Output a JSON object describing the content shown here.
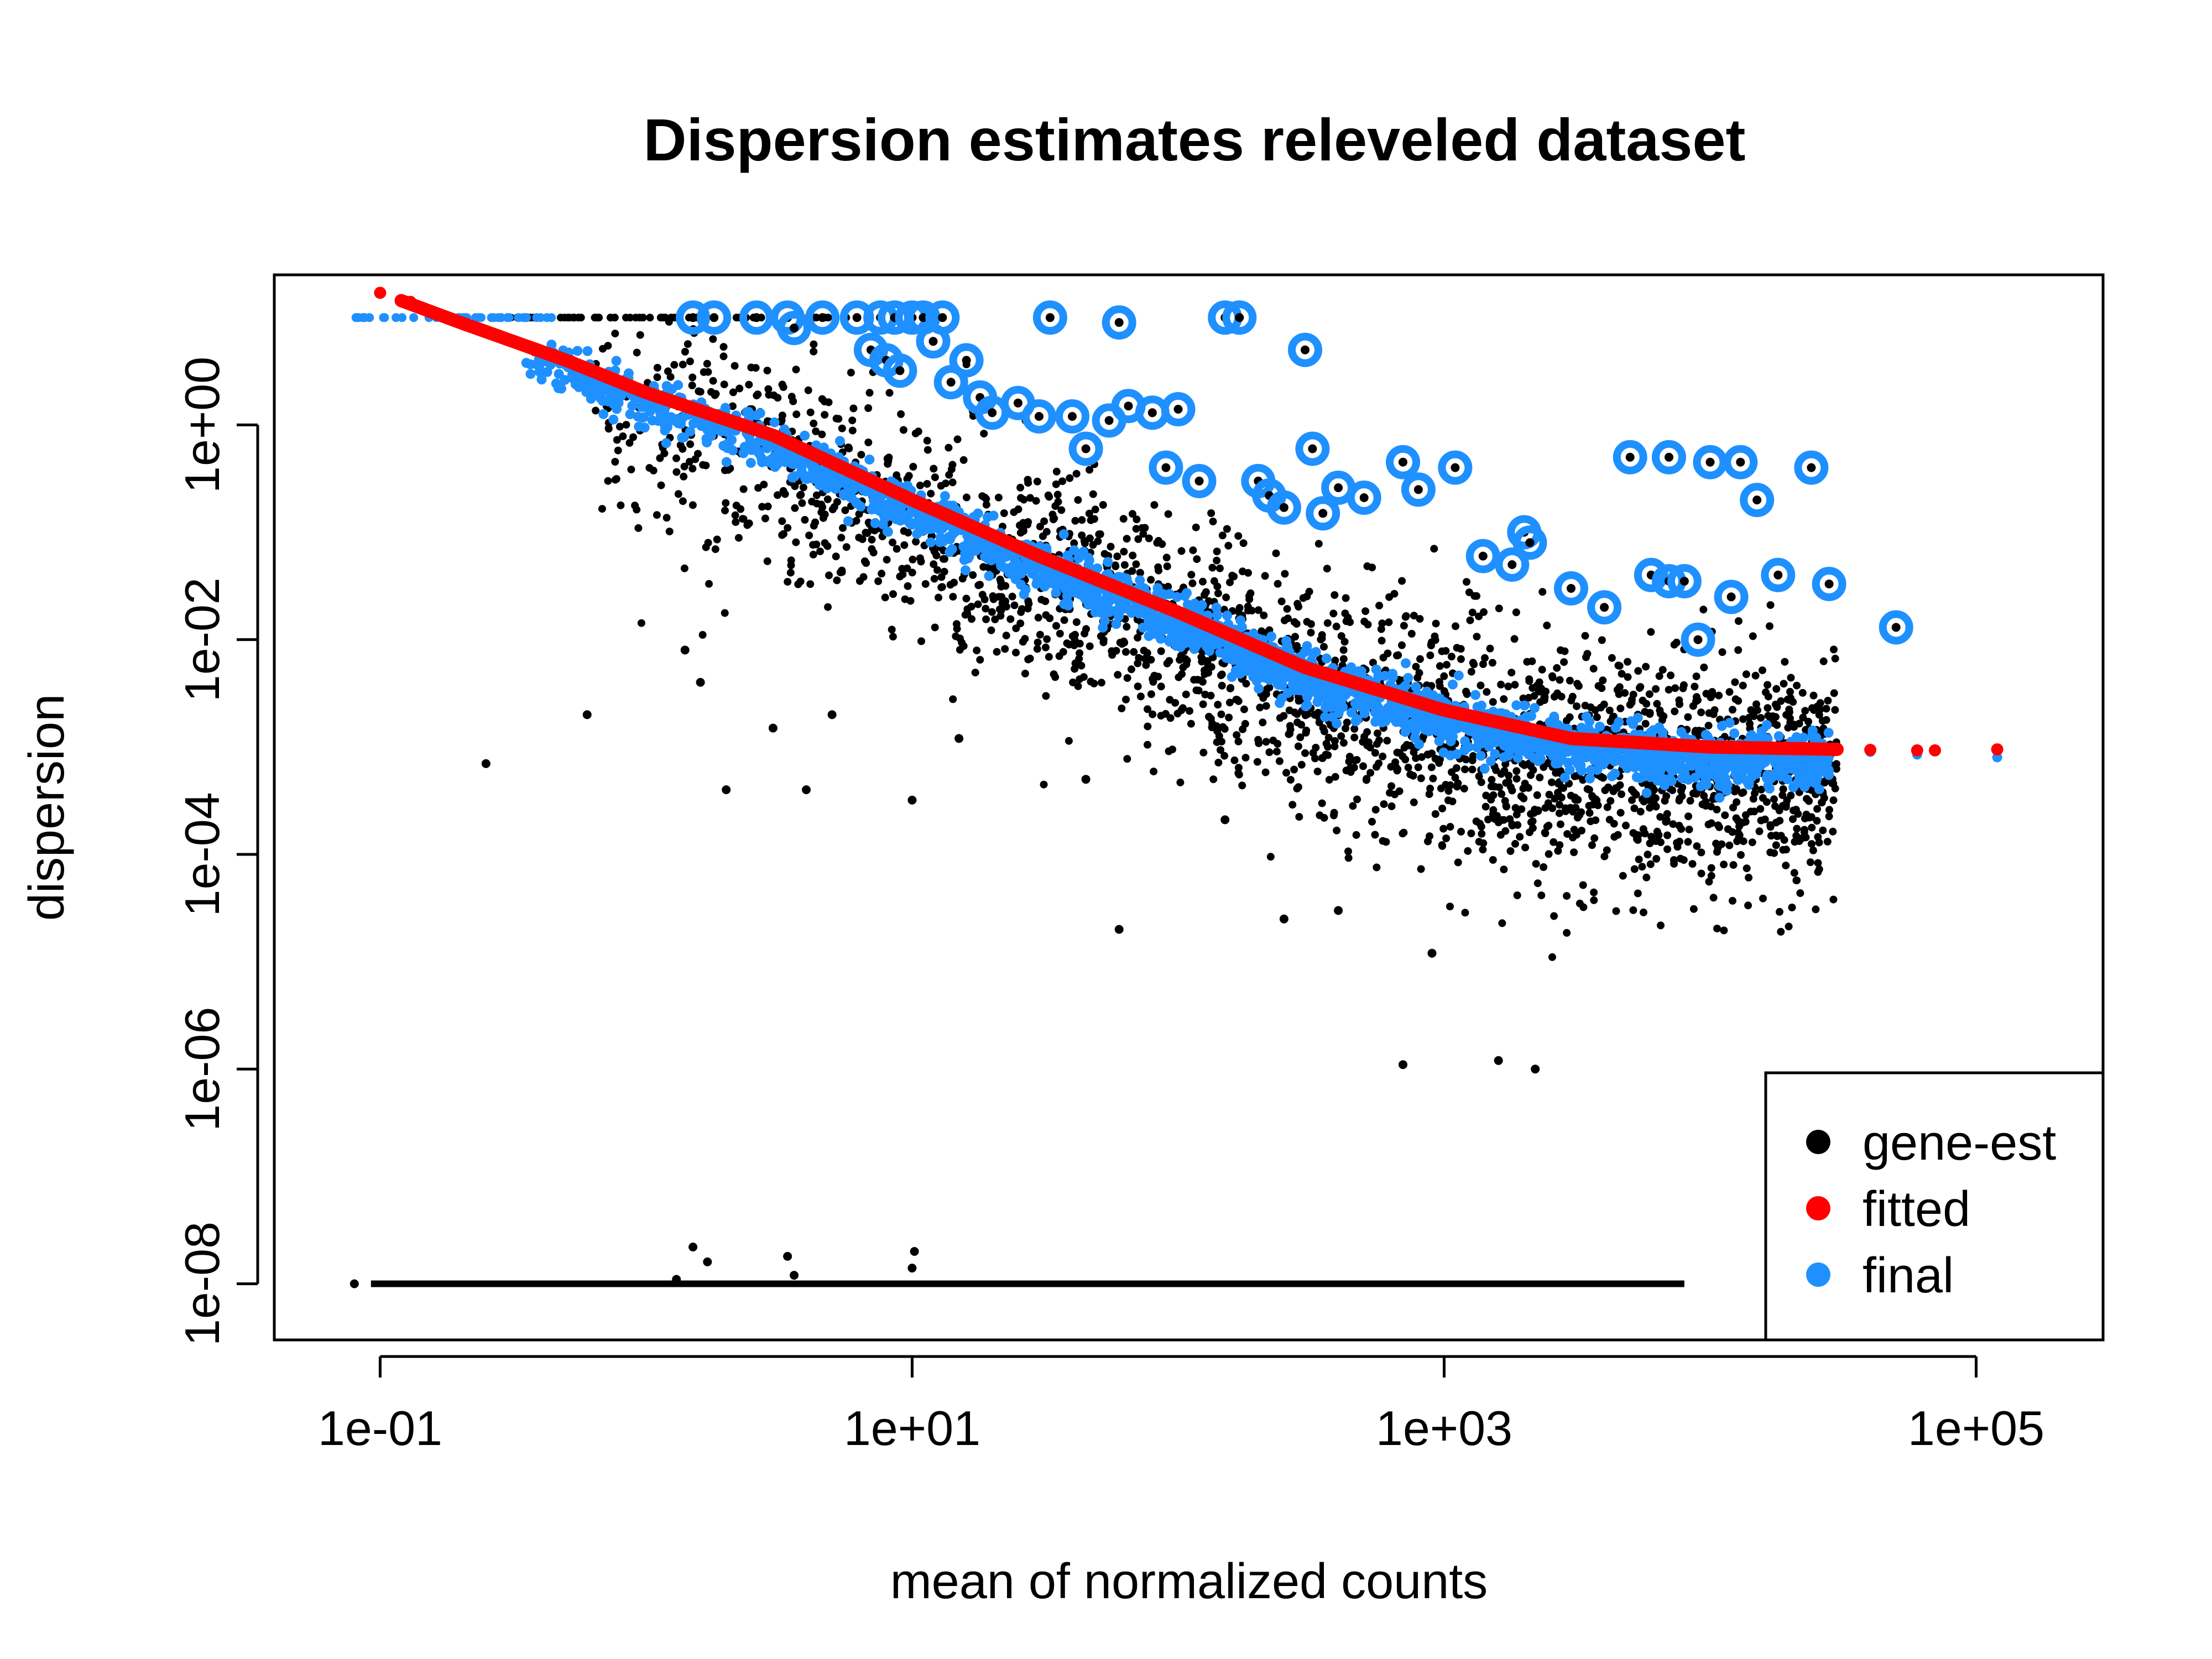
{
  "chart_data": {
    "type": "scatter",
    "title": "Dispersion estimates releveled dataset",
    "xlabel": "mean of normalized counts",
    "ylabel": "dispersion",
    "x_scale": "log10",
    "y_scale": "log10",
    "xlim": [
      0.04,
      300000
    ],
    "ylim": [
      3e-09,
      25
    ],
    "x_ticks": [
      "1e-01",
      "1e+01",
      "1e+03",
      "1e+05"
    ],
    "x_tick_values": [
      0.1,
      10,
      1000,
      100000
    ],
    "y_ticks": [
      "1e-08",
      "1e-06",
      "1e-04",
      "1e-02",
      "1e+00"
    ],
    "y_tick_values": [
      1e-08,
      1e-06,
      0.0001,
      0.01,
      1
    ],
    "grid": false,
    "legend": {
      "position": "bottom-right",
      "entries": [
        {
          "label": "gene-est",
          "color": "#000000"
        },
        {
          "label": "fitted",
          "color": "#ff0000"
        },
        {
          "label": "final",
          "color": "#1e90ff"
        }
      ]
    },
    "colors": {
      "gene_est": "#000000",
      "fitted": "#ff0000",
      "final": "#1e90ff"
    },
    "series": [
      {
        "name": "fitted",
        "kind": "trend",
        "points": [
          [
            0.1,
            17
          ],
          [
            0.2,
            9
          ],
          [
            0.5,
            4
          ],
          [
            1,
            2
          ],
          [
            3,
            0.8
          ],
          [
            10,
            0.2
          ],
          [
            30,
            0.06
          ],
          [
            100,
            0.018
          ],
          [
            300,
            0.0055
          ],
          [
            1000,
            0.0022
          ],
          [
            3000,
            0.0012
          ],
          [
            10000,
            0.001
          ],
          [
            30000,
            0.00095
          ],
          [
            120000,
            0.00093
          ]
        ]
      },
      {
        "name": "final",
        "kind": "band",
        "description_points": [
          [
            0.08,
            10
          ],
          [
            0.3,
            5
          ],
          [
            1,
            1.8
          ],
          [
            10,
            0.22
          ],
          [
            100,
            0.018
          ],
          [
            1000,
            0.0025
          ],
          [
            10000,
            0.0009
          ],
          [
            30000,
            0.0008
          ]
        ]
      },
      {
        "name": "gene-est",
        "kind": "band",
        "points_min_line": [
          [
            0.08,
            1e-08
          ],
          [
            8000,
            1e-08
          ]
        ],
        "outliers": [
          [
            0.25,
            0.0007
          ],
          [
            0.6,
            0.002
          ],
          [
            1.4,
            0.008
          ],
          [
            1.6,
            0.004
          ],
          [
            2.0,
            0.0004
          ],
          [
            4,
            0.0004
          ],
          [
            10,
            0.00032
          ],
          [
            3,
            0.0015
          ],
          [
            5,
            0.002
          ],
          [
            15,
            0.0012
          ],
          [
            45,
            0.0005
          ],
          [
            150,
            0.00021
          ],
          [
            250,
            2.5e-05
          ],
          [
            700,
            1.1e-06
          ],
          [
            1600,
            1.2e-06
          ],
          [
            2200,
            1e-06
          ],
          [
            400,
            3e-05
          ],
          [
            60,
            2e-05
          ],
          [
            900,
            1.2e-05
          ]
        ]
      },
      {
        "name": "outliers (final, circled)",
        "kind": "circled",
        "points": [
          [
            1.5,
            10
          ],
          [
            1.8,
            10
          ],
          [
            2.6,
            10
          ],
          [
            3.4,
            10
          ],
          [
            3.6,
            8
          ],
          [
            4.6,
            10
          ],
          [
            6.2,
            10
          ],
          [
            7.6,
            10
          ],
          [
            8.6,
            10
          ],
          [
            10,
            10
          ],
          [
            11,
            10
          ],
          [
            13,
            10
          ],
          [
            7,
            5
          ],
          [
            8,
            4
          ],
          [
            9,
            3.2
          ],
          [
            12,
            6
          ],
          [
            14,
            2.5
          ],
          [
            16,
            4
          ],
          [
            18,
            1.8
          ],
          [
            20,
            1.3
          ],
          [
            25,
            1.6
          ],
          [
            30,
            1.2
          ],
          [
            33,
            10
          ],
          [
            40,
            1.2
          ],
          [
            45,
            0.6
          ],
          [
            55,
            1.1
          ],
          [
            60,
            9
          ],
          [
            65,
            1.5
          ],
          [
            80,
            1.3
          ],
          [
            90,
            0.4
          ],
          [
            100,
            1.4
          ],
          [
            120,
            0.3
          ],
          [
            150,
            10
          ],
          [
            170,
            10
          ],
          [
            200,
            0.3
          ],
          [
            220,
            0.22
          ],
          [
            250,
            0.17
          ],
          [
            300,
            5
          ],
          [
            320,
            0.6
          ],
          [
            350,
            0.15
          ],
          [
            400,
            0.26
          ],
          [
            500,
            0.21
          ],
          [
            700,
            0.45
          ],
          [
            800,
            0.25
          ],
          [
            1100,
            0.4
          ],
          [
            1400,
            0.06
          ],
          [
            1800,
            0.05
          ],
          [
            2000,
            0.1
          ],
          [
            2100,
            0.08
          ],
          [
            3000,
            0.03
          ],
          [
            4000,
            0.02
          ],
          [
            5000,
            0.5
          ],
          [
            7000,
            0.5
          ],
          [
            10000,
            0.45
          ],
          [
            13000,
            0.45
          ],
          [
            15000,
            0.2
          ],
          [
            24000,
            0.4
          ],
          [
            6000,
            0.04
          ],
          [
            7000,
            0.035
          ],
          [
            8000,
            0.035
          ],
          [
            9000,
            0.01
          ],
          [
            12000,
            0.025
          ],
          [
            18000,
            0.04
          ],
          [
            28000,
            0.033
          ],
          [
            50000,
            0.013
          ]
        ]
      }
    ]
  }
}
